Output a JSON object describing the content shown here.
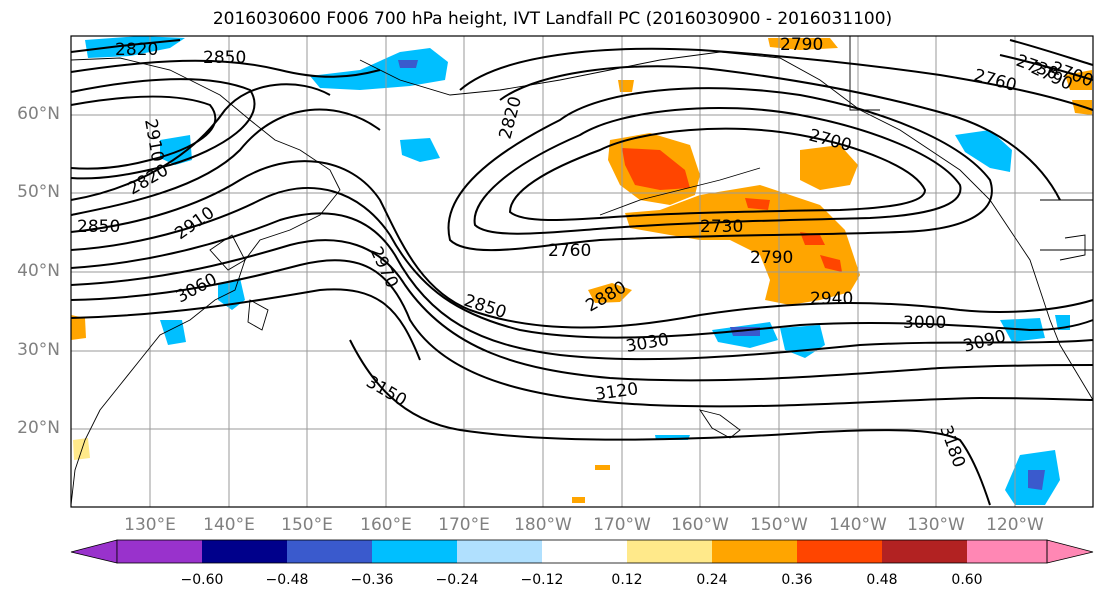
{
  "title": "2016030600 F006 700 hPa height, IVT Landfall PC (2016030900 - 2016031100)",
  "map": {
    "lat_labels": [
      "60°N",
      "50°N",
      "40°N",
      "30°N",
      "20°N"
    ],
    "lon_labels": [
      "130°E",
      "140°E",
      "150°E",
      "160°E",
      "170°E",
      "180°W",
      "170°W",
      "160°W",
      "150°W",
      "140°W",
      "130°W",
      "120°W"
    ],
    "contour_labels": [
      "2820",
      "2850",
      "2820",
      "2850",
      "2910",
      "2910",
      "2790",
      "2970",
      "3060",
      "2820",
      "2760",
      "2850",
      "2880",
      "3030",
      "3150",
      "3120",
      "2700",
      "2730",
      "2790",
      "2940",
      "3000",
      "3090",
      "2790",
      "2760",
      "2730",
      "2700",
      "3180"
    ],
    "colors": {
      "contour": "#000000",
      "grid": "#9a9a9a",
      "coast": "#000000",
      "shade_light_blue": "#00bfff",
      "shade_mid_blue": "#3a5acd",
      "shade_pale_blue": "#b0e0fe",
      "shade_pale_yellow": "#ffe98a",
      "shade_orange": "#ffa500",
      "shade_red_orange": "#ff4500"
    }
  },
  "colorbar": {
    "ticks": [
      "−0.60",
      "−0.48",
      "−0.36",
      "−0.24",
      "−0.12",
      "0.12",
      "0.24",
      "0.36",
      "0.48",
      "0.60"
    ],
    "colors": [
      "#9932cc",
      "#00008b",
      "#3a5acd",
      "#00bfff",
      "#b0e0fe",
      "#ffffff",
      "#ffe98a",
      "#ffa500",
      "#ff4500",
      "#b22222",
      "#ff87b4"
    ]
  }
}
